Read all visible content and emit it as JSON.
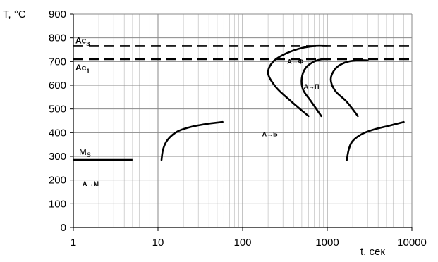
{
  "chart_data": {
    "type": "line",
    "xscale": "log",
    "xlim": [
      1,
      10000
    ],
    "ylim": [
      0,
      900
    ],
    "grid": true,
    "ylabel": "T, °C",
    "xlabel": "t, сек",
    "x_ticks": [
      1,
      10,
      100,
      1000,
      10000
    ],
    "x_tick_labels": [
      "1",
      "10",
      "100",
      "1000",
      "10000"
    ],
    "y_ticks": [
      0,
      100,
      200,
      300,
      400,
      500,
      600,
      700,
      800,
      900
    ],
    "y_tick_labels": [
      "0",
      "100",
      "200",
      "300",
      "400",
      "500",
      "600",
      "700",
      "800",
      "900"
    ],
    "reference_lines": [
      {
        "label": "Ac3",
        "label_main": "Ac",
        "label_sub": "3",
        "y": 765,
        "style": "dashed"
      },
      {
        "label": "Ac1",
        "label_main": "Ac",
        "label_sub": "1",
        "y": 710,
        "style": "dashed"
      }
    ],
    "ms_line": {
      "label": "Ms",
      "label_main": "M",
      "label_sub": "S",
      "y": 285,
      "x": [
        1,
        5
      ]
    },
    "series": [
      {
        "x": [
          11,
          11.5,
          13,
          17,
          25,
          40,
          58
        ],
        "y": [
          285,
          330,
          370,
          405,
          425,
          438,
          445
        ]
      },
      {
        "x": [
          1700,
          1800,
          2000,
          2600,
          3700,
          5500,
          8000
        ],
        "y": [
          285,
          330,
          365,
          395,
          415,
          430,
          445
        ]
      },
      {
        "x": [
          600,
          380,
          250,
          200,
          230,
          330,
          500,
          700,
          1000
        ],
        "y": [
          470,
          530,
          590,
          650,
          700,
          735,
          757,
          765,
          765
        ]
      },
      {
        "x": [
          850,
          650,
          520,
          500,
          560,
          700,
          870,
          1000
        ],
        "y": [
          470,
          530,
          580,
          630,
          675,
          700,
          710,
          710
        ]
      },
      {
        "x": [
          2300,
          1700,
          1250,
          1100,
          1250,
          1600,
          2200,
          3000
        ],
        "y": [
          470,
          530,
          575,
          625,
          670,
          695,
          705,
          705
        ]
      }
    ],
    "annotations": [
      {
        "text": "А→Ф",
        "x": 420,
        "y": 690
      },
      {
        "text": "А→П",
        "x": 650,
        "y": 585
      },
      {
        "text": "А→Б",
        "x": 210,
        "y": 385
      },
      {
        "text": "А→М",
        "x": 1.6,
        "y": 175
      }
    ]
  }
}
